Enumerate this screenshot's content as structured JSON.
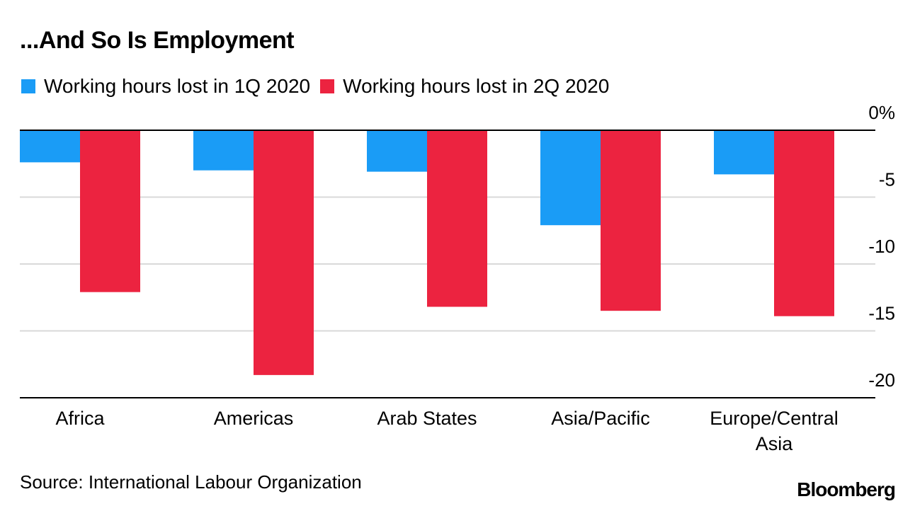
{
  "chart_data": {
    "type": "bar",
    "title": "...And So Is Employment",
    "categories": [
      "Africa",
      "Americas",
      "Arab States",
      "Asia/Pacific",
      "Europe/Central Asia"
    ],
    "category_lines": [
      [
        "Africa"
      ],
      [
        "Americas"
      ],
      [
        "Arab States"
      ],
      [
        "Asia/Pacific"
      ],
      [
        "Europe/Central",
        "Asia"
      ]
    ],
    "series": [
      {
        "name": "Working hours lost in 1Q 2020",
        "color": "#1a9cf6",
        "values": [
          -2.4,
          -3.0,
          -3.1,
          -7.1,
          -3.3
        ]
      },
      {
        "name": "Working hours lost in 2Q 2020",
        "color": "#ec2340",
        "values": [
          -12.1,
          -18.3,
          -13.2,
          -13.5,
          -13.9
        ]
      }
    ],
    "ylim": [
      -20,
      0
    ],
    "yticks": [
      0,
      -5,
      -10,
      -15,
      -20
    ],
    "ytick_labels": [
      "0%",
      "-5",
      "-10",
      "-15",
      "-20"
    ],
    "grid": true,
    "legend_position": "top-left",
    "xlabel": "",
    "ylabel": "",
    "source": "Source: International Labour Organization",
    "logo": "Bloomberg"
  }
}
